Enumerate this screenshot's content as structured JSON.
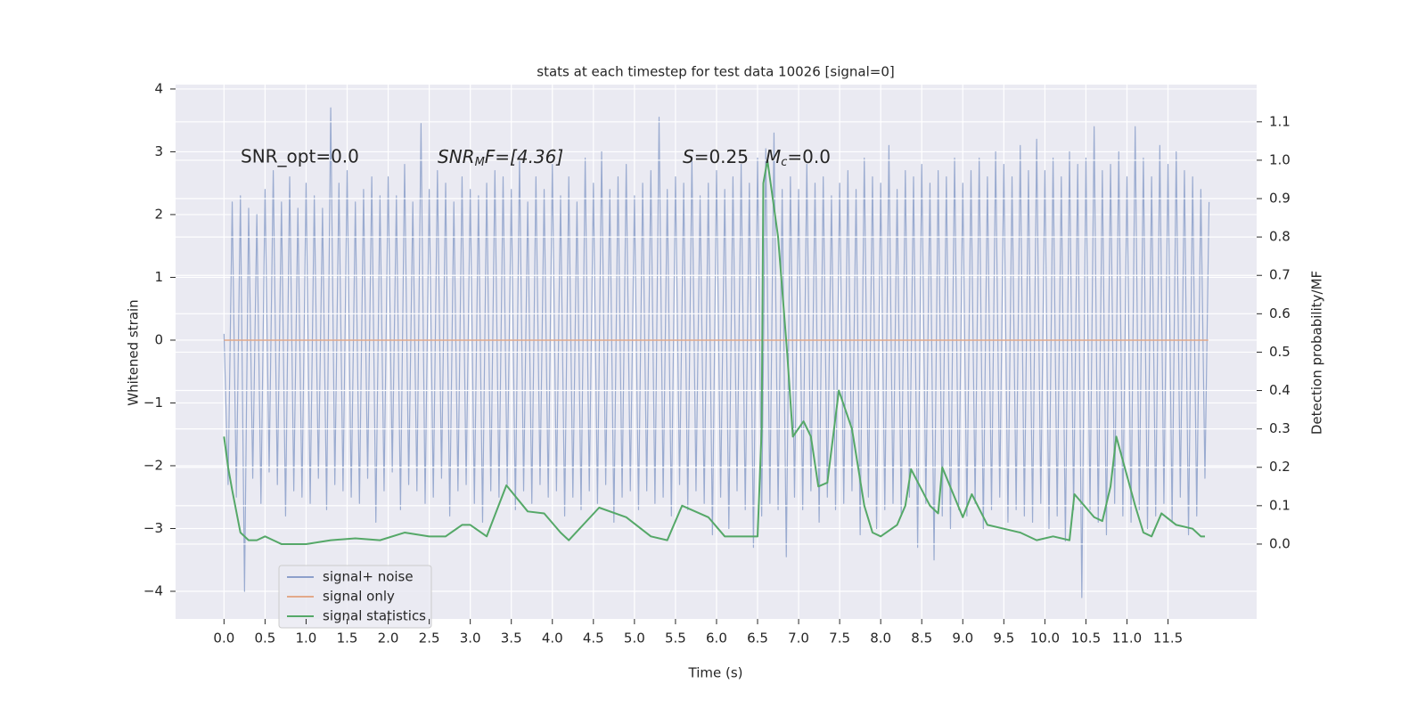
{
  "chart_data": {
    "type": "line",
    "title": "stats at each timestep for test data 10026 [signal=0]",
    "xlabel": "Time (s)",
    "ylabel": "Whitened strain",
    "y2label": "Detection probability/MF",
    "annotations": [
      [
        "SNR_opt=0.0"
      ],
      [
        "SNR",
        "M",
        "F=[4.36]"
      ],
      [
        "S",
        "=0.25"
      ],
      [
        "M",
        "c",
        "=0.0"
      ]
    ],
    "xlim": [
      -0.59,
      12.58
    ],
    "ylim": [
      -4.44,
      4.07
    ],
    "y2lim": [
      -0.195,
      1.197
    ],
    "xticks": [
      {
        "value": 0,
        "label": "0.0"
      },
      {
        "value": 0.5,
        "label": "0.5"
      },
      {
        "value": 1,
        "label": "1.0"
      },
      {
        "value": 1.5,
        "label": "1.5"
      },
      {
        "value": 2,
        "label": "2.0"
      },
      {
        "value": 2.5,
        "label": "2.5"
      },
      {
        "value": 3,
        "label": "3.0"
      },
      {
        "value": 3.5,
        "label": "3.5"
      },
      {
        "value": 4,
        "label": "4.0"
      },
      {
        "value": 4.5,
        "label": "4.5"
      },
      {
        "value": 5,
        "label": "5.0"
      },
      {
        "value": 5.5,
        "label": "5.5"
      },
      {
        "value": 6,
        "label": "6.0"
      },
      {
        "value": 6.5,
        "label": "6.5"
      },
      {
        "value": 7,
        "label": "7.0"
      },
      {
        "value": 7.5,
        "label": "7.5"
      },
      {
        "value": 8,
        "label": "8.0"
      },
      {
        "value": 8.5,
        "label": "8.5"
      },
      {
        "value": 9,
        "label": "9.0"
      },
      {
        "value": 9.5,
        "label": "9.5"
      },
      {
        "value": 10,
        "label": "10.0"
      },
      {
        "value": 10.5,
        "label": "10.5"
      },
      {
        "value": 11,
        "label": "11.0"
      },
      {
        "value": 11.5,
        "label": "11.5"
      }
    ],
    "yticks": [
      {
        "value": -4,
        "label": "−4"
      },
      {
        "value": -3,
        "label": "−3"
      },
      {
        "value": -2,
        "label": "−2"
      },
      {
        "value": -1,
        "label": "−1"
      },
      0,
      1,
      2,
      3,
      4
    ],
    "y2ticks": [
      {
        "value": 0,
        "label": "0.0"
      },
      {
        "value": 0.1,
        "label": "0.1"
      },
      {
        "value": 0.2,
        "label": "0.2"
      },
      {
        "value": 0.3,
        "label": "0.3"
      },
      {
        "value": 0.4,
        "label": "0.4"
      },
      {
        "value": 0.5,
        "label": "0.5"
      },
      {
        "value": 0.6,
        "label": "0.6"
      },
      {
        "value": 0.7,
        "label": "0.7"
      },
      {
        "value": 0.8,
        "label": "0.8"
      },
      {
        "value": 0.9,
        "label": "0.9"
      },
      {
        "value": 1,
        "label": "1.0"
      },
      {
        "value": 1.1,
        "label": "1.1"
      }
    ],
    "grid": true,
    "legend": "lower left",
    "series": [
      {
        "name": "signal+ noise",
        "color": "#9aabd0",
        "legend_color": "#8da0cb",
        "x": [
          0,
          0.05,
          0.1,
          0.15,
          0.2,
          0.25,
          0.3,
          0.35,
          0.4,
          0.45,
          0.5,
          0.55,
          0.6,
          0.65,
          0.7,
          0.75,
          0.8,
          0.85,
          0.9,
          0.95,
          1,
          1.05,
          1.1,
          1.15,
          1.2,
          1.25,
          1.3,
          1.35,
          1.4,
          1.45,
          1.5,
          1.55,
          1.6,
          1.65,
          1.7,
          1.75,
          1.8,
          1.85,
          1.9,
          1.95,
          2,
          2.05,
          2.1,
          2.15,
          2.2,
          2.25,
          2.3,
          2.35,
          2.4,
          2.45,
          2.5,
          2.55,
          2.6,
          2.65,
          2.7,
          2.75,
          2.8,
          2.85,
          2.9,
          2.95,
          3,
          3.05,
          3.1,
          3.15,
          3.2,
          3.25,
          3.3,
          3.35,
          3.4,
          3.45,
          3.5,
          3.55,
          3.6,
          3.65,
          3.7,
          3.75,
          3.8,
          3.85,
          3.9,
          3.95,
          4,
          4.05,
          4.1,
          4.15,
          4.2,
          4.25,
          4.3,
          4.35,
          4.4,
          4.45,
          4.5,
          4.55,
          4.6,
          4.65,
          4.7,
          4.75,
          4.8,
          4.85,
          4.9,
          4.95,
          5,
          5.05,
          5.1,
          5.15,
          5.2,
          5.25,
          5.3,
          5.35,
          5.4,
          5.45,
          5.5,
          5.55,
          5.6,
          5.65,
          5.7,
          5.75,
          5.8,
          5.85,
          5.9,
          5.95,
          6,
          6.05,
          6.1,
          6.15,
          6.2,
          6.25,
          6.3,
          6.35,
          6.4,
          6.45,
          6.5,
          6.55,
          6.6,
          6.65,
          6.7,
          6.75,
          6.8,
          6.85,
          6.9,
          6.95,
          7,
          7.05,
          7.1,
          7.15,
          7.2,
          7.25,
          7.3,
          7.35,
          7.4,
          7.45,
          7.5,
          7.55,
          7.6,
          7.65,
          7.7,
          7.75,
          7.8,
          7.85,
          7.9,
          7.95,
          8,
          8.05,
          8.1,
          8.15,
          8.2,
          8.25,
          8.3,
          8.35,
          8.4,
          8.45,
          8.5,
          8.55,
          8.6,
          8.65,
          8.7,
          8.75,
          8.8,
          8.85,
          8.9,
          8.95,
          9,
          9.05,
          9.1,
          9.15,
          9.2,
          9.25,
          9.3,
          9.35,
          9.4,
          9.45,
          9.5,
          9.55,
          9.6,
          9.65,
          9.7,
          9.75,
          9.8,
          9.85,
          9.9,
          9.95,
          10,
          10.05,
          10.1,
          10.15,
          10.2,
          10.25,
          10.3,
          10.35,
          10.4,
          10.45,
          10.5,
          10.55,
          10.6,
          10.65,
          10.7,
          10.75,
          10.8,
          10.85,
          10.9,
          10.95,
          11,
          11.05,
          11.1,
          11.15,
          11.2,
          11.25,
          11.3,
          11.35,
          11.4,
          11.45,
          11.5,
          11.55,
          11.6,
          11.65,
          11.7,
          11.75,
          11.8,
          11.85,
          11.9,
          11.95,
          12
        ],
        "values": [
          0.1,
          -2.3,
          2.2,
          -2.5,
          2.3,
          -4.0,
          2.1,
          -2.2,
          2.0,
          -2.6,
          2.4,
          -2.1,
          2.7,
          -2.3,
          2.2,
          -2.8,
          2.6,
          -2.4,
          2.1,
          -2.5,
          2.5,
          -2.6,
          2.3,
          -2.2,
          2.1,
          -2.7,
          3.7,
          -2.3,
          2.5,
          -2.4,
          2.7,
          -2.5,
          2.2,
          -2.6,
          2.4,
          -2.2,
          2.6,
          -2.9,
          2.3,
          -2.4,
          2.6,
          -2.1,
          2.3,
          -2.7,
          2.8,
          -2.3,
          2.2,
          -2.4,
          3.45,
          -2.6,
          2.4,
          -2.5,
          2.7,
          -2.2,
          2.5,
          -2.8,
          2.2,
          -2.4,
          2.6,
          -2.3,
          2.4,
          -2.6,
          2.3,
          -2.9,
          2.5,
          -2.4,
          2.7,
          -2.5,
          2.6,
          -2.3,
          2.4,
          -2.7,
          2.9,
          -2.4,
          2.2,
          -2.6,
          2.6,
          -2.3,
          2.4,
          -2.5,
          2.8,
          -2.4,
          2.3,
          -2.8,
          2.6,
          -2.5,
          2.2,
          -2.7,
          2.9,
          -2.4,
          2.5,
          -2.6,
          3.0,
          -2.3,
          2.4,
          -2.9,
          2.6,
          -2.5,
          2.8,
          -2.4,
          2.3,
          -2.7,
          2.5,
          -2.4,
          2.7,
          -2.6,
          3.55,
          -2.5,
          2.4,
          -2.8,
          2.6,
          -2.3,
          2.5,
          -2.7,
          2.9,
          -2.4,
          2.3,
          -2.6,
          2.5,
          -3.1,
          2.7,
          -2.5,
          2.4,
          -3.0,
          2.6,
          -2.4,
          2.8,
          -2.7,
          2.5,
          -3.3,
          2.9,
          -2.8,
          3.05,
          -2.6,
          3.3,
          -2.7,
          2.4,
          -3.45,
          2.6,
          -2.5,
          2.4,
          -2.7,
          2.8,
          -2.4,
          2.5,
          -2.9,
          2.6,
          -2.5,
          2.3,
          -2.7,
          2.5,
          -2.6,
          2.7,
          -2.4,
          2.4,
          -3.1,
          2.9,
          -2.5,
          2.6,
          -3.0,
          2.5,
          -2.7,
          3.1,
          -2.6,
          2.4,
          -2.8,
          2.7,
          -2.5,
          2.6,
          -3.3,
          2.8,
          -2.6,
          2.5,
          -3.5,
          2.7,
          -2.8,
          2.6,
          -3.0,
          2.9,
          -2.7,
          2.5,
          -2.8,
          2.7,
          -2.6,
          2.9,
          -3.0,
          2.6,
          -2.7,
          3.0,
          -2.5,
          2.8,
          -2.9,
          2.6,
          -2.7,
          3.1,
          -2.8,
          2.7,
          -2.9,
          3.2,
          -2.6,
          2.7,
          -3.0,
          2.9,
          -2.8,
          2.6,
          -3.2,
          3.0,
          -2.7,
          2.8,
          -4.1,
          2.9,
          -2.7,
          3.4,
          -2.9,
          2.7,
          -3.1,
          2.8,
          -2.6,
          3.0,
          -2.8,
          2.6,
          -2.9,
          3.4,
          -2.7,
          2.9,
          -3.0,
          2.6,
          -2.8,
          3.1,
          -2.6,
          2.8,
          -2.9,
          3.0,
          -2.5,
          2.7,
          -3.1,
          2.6,
          -2.8,
          2.4,
          -2.2,
          2.2
        ]
      },
      {
        "name": "signal only",
        "color": "#e3a98a",
        "x": [
          0,
          11.99
        ],
        "values": [
          0,
          0
        ]
      },
      {
        "name": "signal statistics",
        "color": "#55a868",
        "axis": "y2",
        "x": [
          0,
          0.05,
          0.1,
          0.2,
          0.3,
          0.4,
          0.5,
          0.6,
          0.7,
          0.8,
          1.0,
          1.3,
          1.6,
          1.9,
          2.2,
          2.5,
          2.7,
          2.9,
          3.0,
          3.2,
          3.44,
          3.7,
          3.9,
          4.1,
          4.2,
          4.57,
          4.9,
          5.2,
          5.4,
          5.58,
          5.9,
          6.1,
          6.3,
          6.5,
          6.55,
          6.57,
          6.62,
          6.75,
          6.86,
          6.93,
          7.06,
          7.15,
          7.24,
          7.35,
          7.49,
          7.65,
          7.8,
          7.9,
          8.0,
          8.2,
          8.3,
          8.37,
          8.6,
          8.7,
          8.75,
          9.0,
          9.11,
          9.3,
          9.5,
          9.7,
          9.9,
          10.1,
          10.3,
          10.36,
          10.6,
          10.7,
          10.8,
          10.87,
          11.1,
          11.2,
          11.3,
          11.42,
          11.6,
          11.8,
          11.9,
          11.95
        ],
        "values": [
          0.28,
          0.2,
          0.14,
          0.03,
          0.01,
          0.01,
          0.02,
          0.01,
          0.0,
          0.0,
          0.0,
          0.01,
          0.015,
          0.01,
          0.03,
          0.02,
          0.02,
          0.05,
          0.05,
          0.02,
          0.153,
          0.085,
          0.08,
          0.03,
          0.01,
          0.095,
          0.07,
          0.02,
          0.01,
          0.1,
          0.07,
          0.02,
          0.02,
          0.02,
          0.3,
          0.94,
          1.0,
          0.8,
          0.5,
          0.28,
          0.32,
          0.28,
          0.15,
          0.16,
          0.4,
          0.3,
          0.1,
          0.03,
          0.02,
          0.05,
          0.1,
          0.195,
          0.1,
          0.08,
          0.2,
          0.07,
          0.13,
          0.05,
          0.04,
          0.03,
          0.01,
          0.02,
          0.01,
          0.13,
          0.07,
          0.06,
          0.15,
          0.28,
          0.1,
          0.03,
          0.02,
          0.08,
          0.05,
          0.04,
          0.02,
          0.02
        ]
      }
    ]
  }
}
